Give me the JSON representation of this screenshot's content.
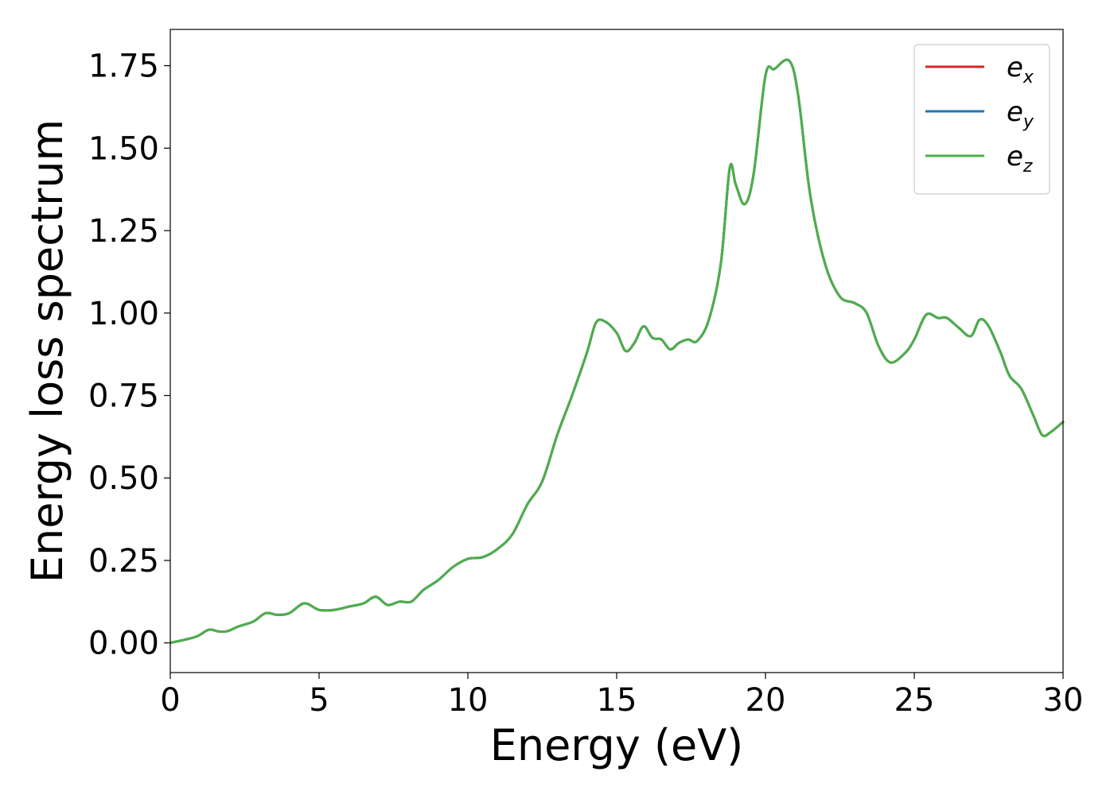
{
  "chart_data": {
    "type": "line",
    "title": "",
    "xlabel": "Energy (eV)",
    "ylabel": "Energy loss spectrum",
    "xlim": [
      0,
      30
    ],
    "ylim": [
      -0.09,
      1.86
    ],
    "xticks": [
      0,
      5,
      10,
      15,
      20,
      25,
      30
    ],
    "xtick_labels": [
      "0",
      "5",
      "10",
      "15",
      "20",
      "25",
      "30"
    ],
    "yticks": [
      0.0,
      0.25,
      0.5,
      0.75,
      1.0,
      1.25,
      1.5,
      1.75
    ],
    "ytick_labels": [
      "0.00",
      "0.25",
      "0.50",
      "0.75",
      "1.00",
      "1.25",
      "1.50",
      "1.75"
    ],
    "grid": false,
    "legend_position": "top-right",
    "x": [
      0,
      0.5,
      0.9,
      1.3,
      1.6,
      1.9,
      2.3,
      2.8,
      3.2,
      3.6,
      4.0,
      4.5,
      5.0,
      5.5,
      6.0,
      6.5,
      6.9,
      7.3,
      7.7,
      8.1,
      8.5,
      9.0,
      9.5,
      10.0,
      10.5,
      11.0,
      11.5,
      12.0,
      12.5,
      13.0,
      13.5,
      14.0,
      14.3,
      14.6,
      15.0,
      15.3,
      15.6,
      15.9,
      16.2,
      16.5,
      16.8,
      17.1,
      17.4,
      17.7,
      18.1,
      18.5,
      18.8,
      19.0,
      19.3,
      19.6,
      20.0,
      20.3,
      20.8,
      21.1,
      21.5,
      22.0,
      22.5,
      23.0,
      23.4,
      23.8,
      24.2,
      24.7,
      25.0,
      25.4,
      25.8,
      26.1,
      26.5,
      26.9,
      27.2,
      27.5,
      27.9,
      28.2,
      28.6,
      29.0,
      29.3,
      29.6,
      30.0
    ],
    "series": [
      {
        "name": "e_x",
        "legend_main": "e",
        "legend_sub": "x",
        "color": "#d62728",
        "values": [
          0.0,
          0.01,
          0.02,
          0.04,
          0.035,
          0.035,
          0.05,
          0.065,
          0.09,
          0.085,
          0.09,
          0.12,
          0.1,
          0.1,
          0.11,
          0.12,
          0.14,
          0.115,
          0.125,
          0.125,
          0.16,
          0.19,
          0.23,
          0.255,
          0.26,
          0.285,
          0.33,
          0.42,
          0.49,
          0.63,
          0.75,
          0.88,
          0.97,
          0.975,
          0.94,
          0.885,
          0.91,
          0.96,
          0.925,
          0.92,
          0.89,
          0.91,
          0.92,
          0.915,
          0.98,
          1.15,
          1.44,
          1.39,
          1.33,
          1.42,
          1.72,
          1.74,
          1.765,
          1.66,
          1.36,
          1.15,
          1.05,
          1.03,
          1.0,
          0.9,
          0.85,
          0.88,
          0.92,
          0.995,
          0.985,
          0.985,
          0.955,
          0.93,
          0.98,
          0.96,
          0.88,
          0.81,
          0.77,
          0.69,
          0.63,
          0.64,
          0.67
        ]
      },
      {
        "name": "e_y",
        "legend_main": "e",
        "legend_sub": "y",
        "color": "#1f77b4",
        "values": [
          0.0,
          0.01,
          0.02,
          0.04,
          0.035,
          0.035,
          0.05,
          0.065,
          0.09,
          0.085,
          0.09,
          0.12,
          0.1,
          0.1,
          0.11,
          0.12,
          0.14,
          0.115,
          0.125,
          0.125,
          0.16,
          0.19,
          0.23,
          0.255,
          0.26,
          0.285,
          0.33,
          0.42,
          0.49,
          0.63,
          0.75,
          0.88,
          0.97,
          0.975,
          0.94,
          0.885,
          0.91,
          0.96,
          0.925,
          0.92,
          0.89,
          0.91,
          0.92,
          0.915,
          0.98,
          1.15,
          1.44,
          1.39,
          1.33,
          1.42,
          1.72,
          1.74,
          1.765,
          1.66,
          1.36,
          1.15,
          1.05,
          1.03,
          1.0,
          0.9,
          0.85,
          0.88,
          0.92,
          0.995,
          0.985,
          0.985,
          0.955,
          0.93,
          0.98,
          0.96,
          0.88,
          0.81,
          0.77,
          0.69,
          0.63,
          0.64,
          0.67
        ]
      },
      {
        "name": "e_z",
        "legend_main": "e",
        "legend_sub": "z",
        "color": "#4daf4a",
        "values": [
          0.0,
          0.01,
          0.02,
          0.04,
          0.035,
          0.035,
          0.05,
          0.065,
          0.09,
          0.085,
          0.09,
          0.12,
          0.1,
          0.1,
          0.11,
          0.12,
          0.14,
          0.115,
          0.125,
          0.125,
          0.16,
          0.19,
          0.23,
          0.255,
          0.26,
          0.285,
          0.33,
          0.42,
          0.49,
          0.63,
          0.75,
          0.88,
          0.97,
          0.975,
          0.94,
          0.885,
          0.91,
          0.96,
          0.925,
          0.92,
          0.89,
          0.91,
          0.92,
          0.915,
          0.98,
          1.15,
          1.44,
          1.39,
          1.33,
          1.42,
          1.72,
          1.74,
          1.765,
          1.66,
          1.36,
          1.15,
          1.05,
          1.03,
          1.0,
          0.9,
          0.85,
          0.88,
          0.92,
          0.995,
          0.985,
          0.985,
          0.955,
          0.93,
          0.98,
          0.96,
          0.88,
          0.81,
          0.77,
          0.69,
          0.63,
          0.64,
          0.67
        ]
      }
    ]
  }
}
